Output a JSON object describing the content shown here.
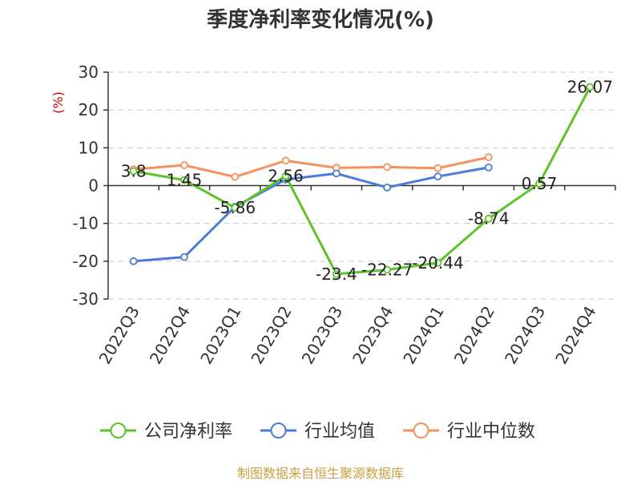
{
  "chart_data": {
    "type": "line",
    "title": "季度净利率变化情况(%)",
    "ylabel": "(%)",
    "ylim": [
      -30,
      30
    ],
    "yticks": [
      30,
      20,
      10,
      0,
      -10,
      -20,
      -30
    ],
    "categories": [
      "2022Q3",
      "2022Q4",
      "2023Q1",
      "2023Q2",
      "2023Q3",
      "2023Q4",
      "2024Q1",
      "2024Q2",
      "2024Q3",
      "2024Q4"
    ],
    "series": [
      {
        "name": "公司净利率",
        "color": "#5cc42a",
        "values": [
          3.8,
          1.45,
          -5.86,
          2.56,
          -23.4,
          -22.27,
          -20.44,
          -8.74,
          0.57,
          26.07
        ],
        "labels": [
          "3.8",
          "1.45",
          "-5.86",
          "2.56",
          "-23.4",
          "-22.27",
          "-20.44",
          "-8.74",
          "0.57",
          "26.07"
        ]
      },
      {
        "name": "行业均值",
        "color": "#4a7bdb",
        "values": [
          -20.0,
          -18.9,
          -5.6,
          1.6,
          3.2,
          -0.5,
          2.4,
          4.8,
          null,
          null
        ]
      },
      {
        "name": "行业中位数",
        "color": "#f5915a",
        "values": [
          4.3,
          5.4,
          2.3,
          6.6,
          4.7,
          4.9,
          4.6,
          7.5,
          null,
          null
        ]
      }
    ],
    "grid": true,
    "legend_position": "bottom"
  },
  "source_text": "制图数据来自恒生聚源数据库"
}
